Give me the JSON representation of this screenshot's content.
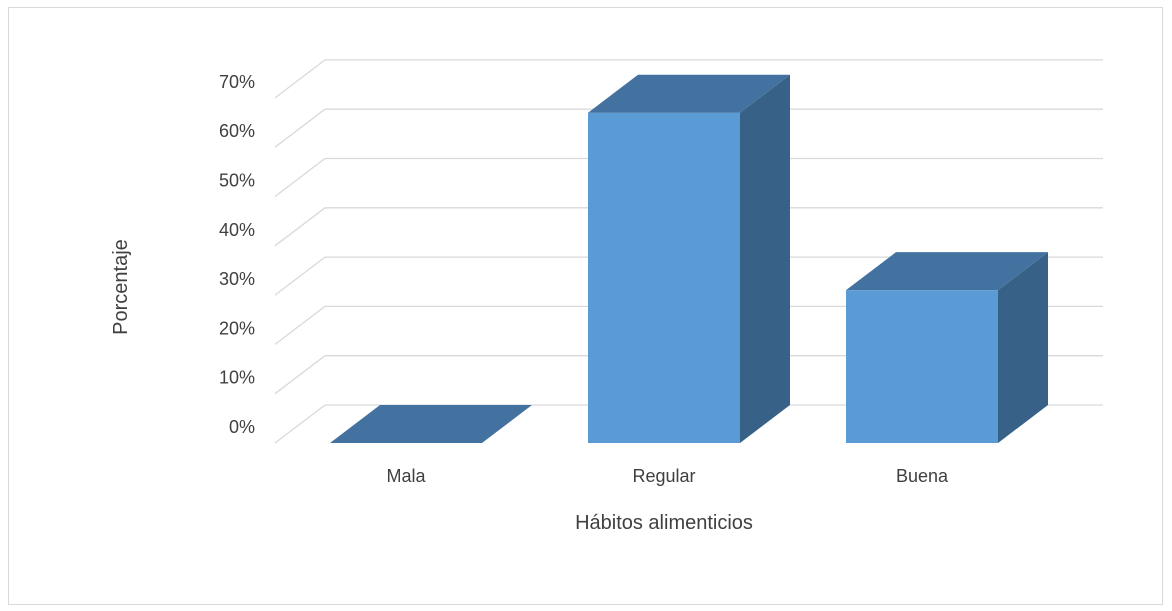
{
  "chart_data": {
    "type": "bar",
    "style": "3d-column",
    "title": "",
    "xlabel": "Hábitos alimenticios",
    "ylabel": "Porcentaje",
    "categories": [
      "Mala",
      "Regular",
      "Buena"
    ],
    "values": [
      0,
      67,
      31
    ],
    "value_unit": "%",
    "ylim": [
      0,
      70
    ],
    "yticks": [
      0,
      10,
      20,
      30,
      40,
      50,
      60,
      70
    ],
    "ytick_labels": [
      "0%",
      "10%",
      "20%",
      "30%",
      "40%",
      "50%",
      "60%",
      "70%"
    ],
    "grid": true,
    "legend": "none",
    "colors": {
      "front": "#5b9bd5",
      "top": "#4472a0",
      "side": "#376187",
      "grid": "#d9d9d9"
    }
  }
}
